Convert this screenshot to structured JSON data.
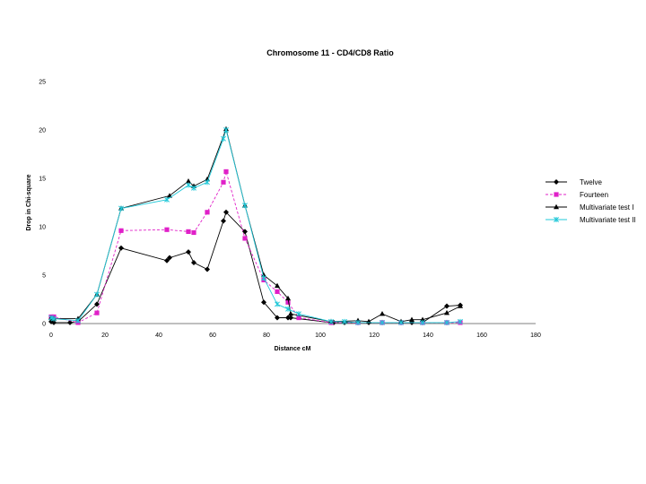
{
  "chart_data": {
    "type": "line",
    "title": "Chromosome 11 - CD4/CD8 Ratio",
    "xlabel": "Distance cM",
    "ylabel": "Drop in Chi-square",
    "xlim": [
      0,
      180
    ],
    "ylim": [
      0,
      25
    ],
    "x_ticks": [
      "0",
      "20",
      "40",
      "60",
      "80",
      "100",
      "120",
      "140",
      "160",
      "180"
    ],
    "y_ticks": [
      "0",
      "5",
      "10",
      "15",
      "20",
      "25"
    ],
    "grid": false,
    "legend_position": "right",
    "series": [
      {
        "name": "Twelve",
        "color": "#000000",
        "marker": "diamond",
        "dashed": false,
        "points": [
          [
            0,
            0.2
          ],
          [
            1,
            0.1
          ],
          [
            7,
            0.1
          ],
          [
            10,
            0.2
          ],
          [
            17,
            2.0
          ],
          [
            26,
            7.8
          ],
          [
            43,
            6.5
          ],
          [
            44,
            6.8
          ],
          [
            51,
            7.4
          ],
          [
            53,
            6.3
          ],
          [
            58,
            5.6
          ],
          [
            64,
            10.6
          ],
          [
            65,
            11.5
          ],
          [
            72,
            9.5
          ],
          [
            79,
            2.2
          ],
          [
            84,
            0.6
          ],
          [
            88,
            0.6
          ],
          [
            89,
            0.6
          ],
          [
            104,
            0.1
          ],
          [
            105,
            0.1
          ],
          [
            109,
            0.1
          ],
          [
            114,
            0.1
          ],
          [
            118,
            0.1
          ],
          [
            123,
            0.1
          ],
          [
            130,
            0.1
          ],
          [
            134,
            0.1
          ],
          [
            138,
            0.1
          ],
          [
            147,
            1.8
          ],
          [
            152,
            1.9
          ]
        ]
      },
      {
        "name": "Fourteen",
        "color": "#e020c8",
        "marker": "square",
        "dashed": true,
        "points": [
          [
            0,
            0.7
          ],
          [
            1,
            0.7
          ],
          [
            10,
            0.1
          ],
          [
            17,
            1.1
          ],
          [
            26,
            9.6
          ],
          [
            43,
            9.7
          ],
          [
            51,
            9.5
          ],
          [
            53,
            9.4
          ],
          [
            58,
            11.5
          ],
          [
            64,
            14.6
          ],
          [
            65,
            15.7
          ],
          [
            72,
            8.8
          ],
          [
            79,
            4.5
          ],
          [
            84,
            3.3
          ],
          [
            88,
            2.2
          ],
          [
            92,
            0.6
          ],
          [
            104,
            0.1
          ],
          [
            114,
            0.1
          ],
          [
            123,
            0.1
          ],
          [
            130,
            0.1
          ],
          [
            138,
            0.1
          ],
          [
            147,
            0.1
          ],
          [
            152,
            0.1
          ]
        ]
      },
      {
        "name": "Multivariate test I",
        "color": "#000000",
        "marker": "triangle",
        "dashed": false,
        "points": [
          [
            0,
            0.6
          ],
          [
            1,
            0.5
          ],
          [
            10,
            0.5
          ],
          [
            17,
            3.0
          ],
          [
            26,
            11.9
          ],
          [
            44,
            13.2
          ],
          [
            51,
            14.7
          ],
          [
            53,
            14.2
          ],
          [
            58,
            14.9
          ],
          [
            65,
            20.1
          ],
          [
            72,
            12.2
          ],
          [
            79,
            5.0
          ],
          [
            84,
            3.9
          ],
          [
            88,
            2.6
          ],
          [
            89,
            1.0
          ],
          [
            104,
            0.2
          ],
          [
            114,
            0.3
          ],
          [
            118,
            0.2
          ],
          [
            123,
            1.0
          ],
          [
            130,
            0.2
          ],
          [
            134,
            0.4
          ],
          [
            138,
            0.4
          ],
          [
            147,
            1.1
          ],
          [
            152,
            1.8
          ]
        ]
      },
      {
        "name": "Multivariate test II",
        "color": "#20c8d8",
        "marker": "x",
        "dashed": false,
        "points": [
          [
            0,
            0.6
          ],
          [
            1,
            0.5
          ],
          [
            10,
            0.3
          ],
          [
            17,
            3.0
          ],
          [
            26,
            11.9
          ],
          [
            43,
            12.8
          ],
          [
            51,
            14.3
          ],
          [
            53,
            14.0
          ],
          [
            58,
            14.6
          ],
          [
            64,
            19.1
          ],
          [
            65,
            20.0
          ],
          [
            72,
            12.2
          ],
          [
            79,
            4.7
          ],
          [
            84,
            2.0
          ],
          [
            88,
            1.5
          ],
          [
            92,
            1.0
          ],
          [
            104,
            0.2
          ],
          [
            109,
            0.2
          ],
          [
            114,
            0.1
          ],
          [
            123,
            0.1
          ],
          [
            130,
            0.1
          ],
          [
            138,
            0.1
          ],
          [
            147,
            0.1
          ],
          [
            152,
            0.2
          ]
        ]
      }
    ]
  }
}
